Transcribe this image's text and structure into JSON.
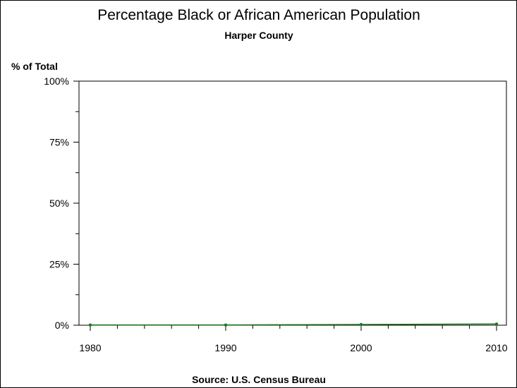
{
  "chart_data": {
    "type": "line",
    "title": "Percentage Black or African American Population",
    "subtitle": "Harper County",
    "ylabel": "% of Total",
    "footnote": "Source: U.S. Census Bureau",
    "x": [
      1980,
      1990,
      2000,
      2010
    ],
    "y_ticks": [
      "0%",
      "25%",
      "50%",
      "75%",
      "100%"
    ],
    "x_ticks": [
      "1980",
      "1990",
      "2000",
      "2010"
    ],
    "xlim": [
      1980,
      2010
    ],
    "ylim": [
      0,
      100
    ],
    "series": [
      {
        "values": [
          0.1,
          0.1,
          0.3,
          0.5
        ],
        "color": "#1a7a1a"
      }
    ],
    "grid": false
  }
}
